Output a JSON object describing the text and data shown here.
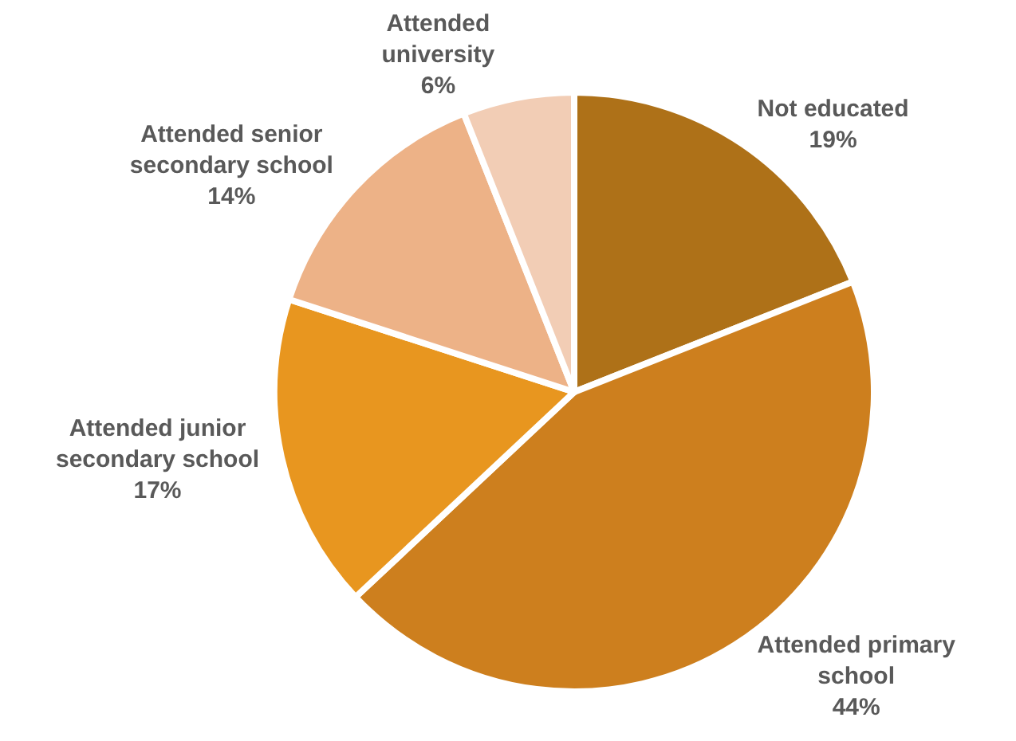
{
  "chart_data": {
    "type": "pie",
    "categories": [
      "Not educated",
      "Attended primary school",
      "Attended junior secondary school",
      "Attended senior secondary school",
      "Attended university"
    ],
    "values": [
      19,
      44,
      17,
      14,
      6
    ],
    "value_labels": [
      "19%",
      "44%",
      "17%",
      "14%",
      "6%"
    ],
    "colors": [
      "#ae7118",
      "#cd7f1e",
      "#e8961f",
      "#edb287",
      "#f2cdb5"
    ]
  }
}
